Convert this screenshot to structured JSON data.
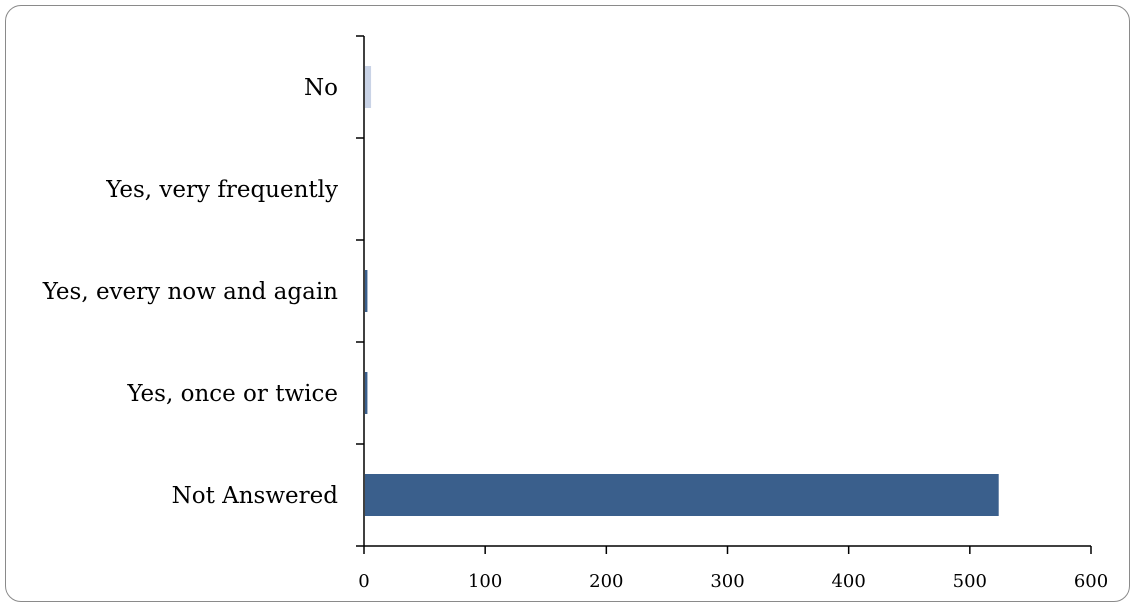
{
  "chart_data": {
    "type": "bar",
    "orientation": "horizontal",
    "categories": [
      "No",
      "Yes, very frequently",
      "Yes, every now and again",
      "Yes, once or twice",
      "Not Answered"
    ],
    "values": [
      5,
      0,
      2,
      2,
      523
    ],
    "bar_colors": [
      "#c9d3e6",
      "#3a5f8c",
      "#3a5f8c",
      "#3a5f8c",
      "#3a5f8c"
    ],
    "xlim": [
      0,
      600
    ],
    "x_ticks": [
      0,
      100,
      200,
      300,
      400,
      500,
      600
    ],
    "grid": false,
    "legend": "none"
  }
}
